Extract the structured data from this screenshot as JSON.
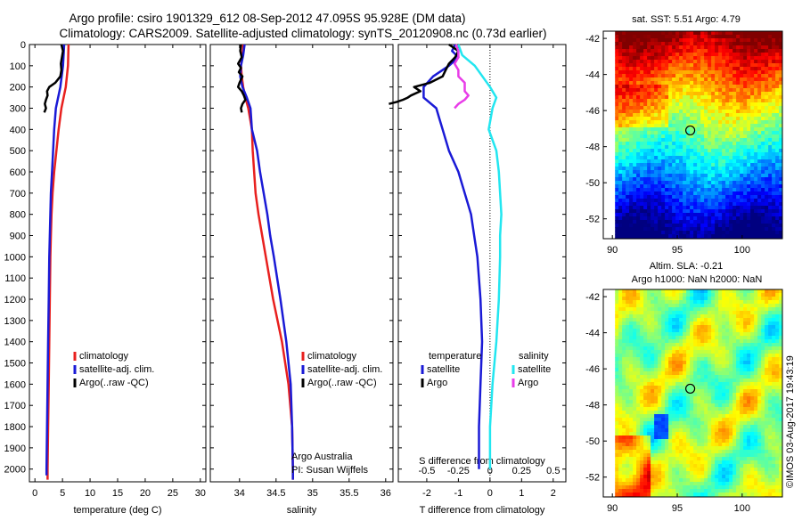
{
  "header": {
    "line1": "Argo profile: csiro 1901329_612 08-Sep-2012 47.095S 95.928E (DM data)",
    "line2": "Climatology: CARS2009. Satellite-adjusted climatology: synTS_20120908.nc (0.73d earlier)"
  },
  "colors": {
    "climatology": "#e8201e",
    "satellite": "#1a1ad6",
    "argo": "#000000",
    "salinity_satellite": "#22e6f0",
    "salinity_argo": "#e83ce8"
  },
  "depth_axis": {
    "ticks": [
      0,
      100,
      200,
      300,
      400,
      500,
      600,
      700,
      800,
      900,
      1000,
      1100,
      1200,
      1300,
      1400,
      1500,
      1600,
      1700,
      1800,
      1900,
      2000
    ],
    "ylim": [
      2060,
      0
    ]
  },
  "chart_data": [
    {
      "type": "line",
      "xlabel": "temperature (deg C)",
      "xlim": [
        -1,
        31
      ],
      "xticks": [
        0,
        5,
        10,
        15,
        20,
        25,
        30
      ],
      "legend": [
        "climatology",
        "satellite-adj. clim.",
        "Argo(..raw -QC)"
      ],
      "series": [
        {
          "name": "climatology",
          "depth": [
            0,
            100,
            200,
            300,
            400,
            500,
            600,
            700,
            800,
            900,
            1000,
            1200,
            1400,
            1600,
            1800,
            2000,
            2050
          ],
          "values": [
            6.1,
            6.0,
            5.6,
            4.8,
            4.3,
            3.9,
            3.5,
            3.2,
            3.0,
            2.9,
            2.8,
            2.7,
            2.6,
            2.5,
            2.4,
            2.3,
            2.3
          ]
        },
        {
          "name": "satellite-adj. clim.",
          "depth": [
            0,
            100,
            200,
            300,
            400,
            500,
            600,
            700,
            800,
            900,
            1000,
            1200,
            1400,
            1600,
            1800,
            2000,
            2030
          ],
          "values": [
            5.3,
            5.1,
            4.6,
            3.8,
            3.5,
            3.3,
            3.1,
            2.9,
            2.8,
            2.7,
            2.6,
            2.5,
            2.4,
            2.3,
            2.2,
            2.1,
            2.1
          ]
        },
        {
          "name": "Argo(..raw -QC)",
          "depth": [
            0,
            30,
            60,
            90,
            120,
            150,
            180,
            200,
            220,
            240,
            260,
            280,
            300,
            320
          ],
          "values": [
            4.8,
            5.1,
            4.9,
            4.7,
            4.8,
            4.6,
            3.7,
            2.6,
            2.2,
            2.3,
            2.0,
            1.8,
            2.0,
            1.7
          ]
        }
      ]
    },
    {
      "type": "line",
      "xlabel": "salinity",
      "xlim": [
        33.6,
        36.1
      ],
      "xticks": [
        34,
        34.5,
        35,
        35.5,
        36
      ],
      "legend": [
        "climatology",
        "satellite-adj. clim.",
        "Argo(..raw -QC)"
      ],
      "annotation": [
        "Argo Australia",
        "PI: Susan Wijffels"
      ],
      "series": [
        {
          "name": "climatology",
          "depth": [
            0,
            50,
            100,
            150,
            200,
            250,
            300,
            400,
            500,
            600,
            700,
            800,
            900,
            1000,
            1200,
            1400,
            1600,
            1800,
            2000,
            2050
          ],
          "values": [
            34.05,
            34.04,
            34.02,
            34.03,
            34.05,
            34.08,
            34.12,
            34.17,
            34.18,
            34.2,
            34.22,
            34.26,
            34.31,
            34.36,
            34.46,
            34.58,
            34.67,
            34.72,
            34.73,
            34.73
          ]
        },
        {
          "name": "satellite-adj. clim.",
          "depth": [
            0,
            50,
            100,
            150,
            200,
            250,
            300,
            400,
            500,
            600,
            700,
            800,
            900,
            1000,
            1200,
            1400,
            1600,
            1800,
            2000,
            2050
          ],
          "values": [
            34.07,
            34.05,
            34.02,
            34.01,
            34.04,
            34.1,
            34.15,
            34.17,
            34.24,
            34.28,
            34.33,
            34.38,
            34.42,
            34.47,
            34.56,
            34.64,
            34.7,
            34.72,
            34.73,
            34.73
          ]
        },
        {
          "name": "Argo(..raw -QC)",
          "depth": [
            0,
            30,
            60,
            90,
            110,
            130,
            150,
            180,
            200,
            220,
            240,
            260,
            280,
            300,
            320
          ],
          "values": [
            34.02,
            34.01,
            34.03,
            33.98,
            34.02,
            33.99,
            34.04,
            34.0,
            33.98,
            34.03,
            34.06,
            34.08,
            34.04,
            34.02,
            34.03
          ]
        }
      ]
    },
    {
      "type": "line",
      "xlabel": "T difference from climatology",
      "xlabel_top": "S difference from climatology",
      "xlim": [
        -2.9,
        2.4
      ],
      "xticks": [
        -2,
        -1,
        0,
        1,
        2
      ],
      "xticks_s": [
        "-0.5",
        "-0.25",
        "0",
        "0.25",
        "0.5"
      ],
      "xticks_s_values": [
        -0.5,
        -0.25,
        0,
        0.25,
        0.5
      ],
      "legend_t": [
        "temperature",
        "satellite",
        "Argo"
      ],
      "legend_s": [
        "salinity",
        "satellite",
        "Argo"
      ],
      "series": [
        {
          "name": "temperature satellite",
          "depth": [
            0,
            30,
            60,
            100,
            150,
            200,
            250,
            300,
            350,
            400,
            500,
            600,
            700,
            800,
            900,
            1000,
            1200,
            1400,
            1600,
            1800,
            2000
          ],
          "values": [
            -1.1,
            -1.2,
            -1.0,
            -1.3,
            -1.8,
            -2.1,
            -2.1,
            -1.7,
            -1.6,
            -1.5,
            -1.3,
            -1.0,
            -0.8,
            -0.6,
            -0.5,
            -0.4,
            -0.3,
            -0.25,
            -0.3,
            -0.35,
            -0.35
          ]
        },
        {
          "name": "temperature Argo",
          "depth": [
            0,
            30,
            60,
            90,
            120,
            150,
            180,
            200,
            220,
            240,
            250,
            260,
            270,
            280
          ],
          "values": [
            -1.3,
            -1.0,
            -1.1,
            -1.3,
            -1.4,
            -1.5,
            -1.9,
            -2.4,
            -2.2,
            -2.5,
            -2.6,
            -2.75,
            -2.95,
            -3.2
          ]
        },
        {
          "name": "salinity satellite",
          "depth": [
            0,
            50,
            100,
            150,
            200,
            250,
            300,
            400,
            500,
            600,
            700,
            800,
            900,
            1000,
            1200,
            1400,
            1600,
            1800,
            2000
          ],
          "values": [
            -0.25,
            -0.22,
            -0.12,
            -0.06,
            0,
            0.05,
            0.02,
            -0.01,
            0.05,
            0.07,
            0.08,
            0.09,
            0.08,
            0.08,
            0.07,
            0.05,
            0.02,
            0.0,
            0.0
          ]
        },
        {
          "name": "salinity Argo",
          "depth": [
            0,
            30,
            60,
            90,
            120,
            150,
            180,
            200,
            220,
            240,
            260,
            280,
            300
          ],
          "values": [
            -0.27,
            -0.25,
            -0.25,
            -0.28,
            -0.25,
            -0.25,
            -0.2,
            -0.2,
            -0.2,
            -0.17,
            -0.2,
            -0.25,
            -0.28
          ]
        }
      ]
    },
    {
      "type": "heatmap",
      "title": "sat. SST: 5.51 Argo: 4.79",
      "xlim": [
        89.3,
        103.1
      ],
      "ylim": [
        -53.1,
        -41.6
      ],
      "xticks": [
        90,
        95,
        100
      ],
      "yticks": [
        -42,
        -44,
        -46,
        -48,
        -50,
        -52
      ],
      "marker": [
        96,
        -47.1
      ]
    },
    {
      "type": "heatmap",
      "title_line1": "Altim. SLA: -0.21",
      "title_line2": "Argo h1000: NaN h2000: NaN",
      "xlim": [
        89.3,
        103.1
      ],
      "ylim": [
        -53.1,
        -41.6
      ],
      "xticks": [
        90,
        95,
        100
      ],
      "yticks": [
        -42,
        -44,
        -46,
        -48,
        -50,
        -52
      ],
      "marker": [
        96,
        -47.1
      ]
    }
  ],
  "footer": {
    "credit": "©IMOS 03-Aug-2017 19:43:19"
  }
}
